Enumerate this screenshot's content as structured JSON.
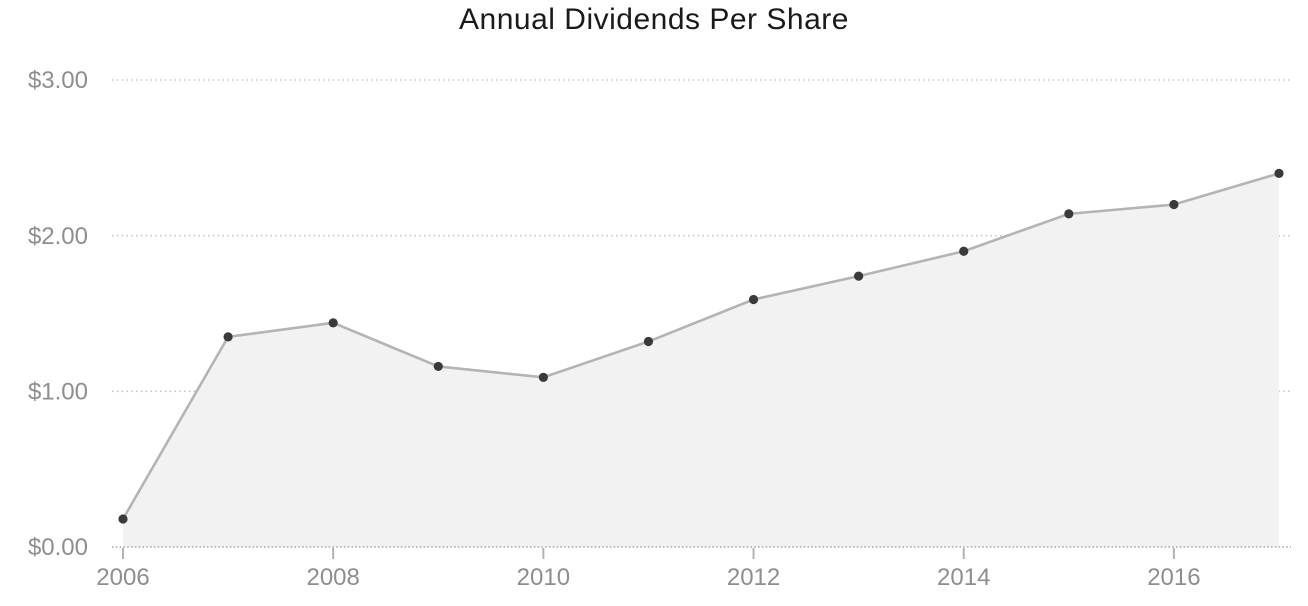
{
  "chart_data": {
    "type": "area",
    "title": "Annual Dividends Per Share",
    "xlabel": "",
    "ylabel": "",
    "x": [
      2006,
      2007,
      2008,
      2009,
      2010,
      2011,
      2012,
      2013,
      2014,
      2015,
      2016,
      2017
    ],
    "series": [
      {
        "name": "Annual Dividends Per Share",
        "values": [
          0.18,
          1.35,
          1.44,
          1.16,
          1.09,
          1.32,
          1.59,
          1.74,
          1.9,
          2.14,
          2.2,
          2.4
        ]
      }
    ],
    "xlim": [
      2006,
      2017
    ],
    "ylim": [
      0,
      3
    ],
    "y_ticks": [
      {
        "value": 0,
        "label": "$0.00"
      },
      {
        "value": 1,
        "label": "$1.00"
      },
      {
        "value": 2,
        "label": "$2.00"
      },
      {
        "value": 3,
        "label": "$3.00"
      }
    ],
    "x_ticks": [
      {
        "value": 2006,
        "label": "2006"
      },
      {
        "value": 2008,
        "label": "2008"
      },
      {
        "value": 2010,
        "label": "2010"
      },
      {
        "value": 2012,
        "label": "2012"
      },
      {
        "value": 2014,
        "label": "2014"
      },
      {
        "value": 2016,
        "label": "2016"
      }
    ],
    "grid": "horizontal-dotted",
    "legend_position": "none",
    "marker": "filled-circle",
    "colors": {
      "background": "#ffffff",
      "title": "#1a1a1a",
      "tick_label": "#8e8e8e",
      "gridline": "#c9c9c9",
      "baseline": "#a8a8a8",
      "tick_mark": "#b3b3b3",
      "line": "#b4b4b4",
      "area_fill": "#f2f2f2",
      "point": "#3a3a3a"
    }
  }
}
